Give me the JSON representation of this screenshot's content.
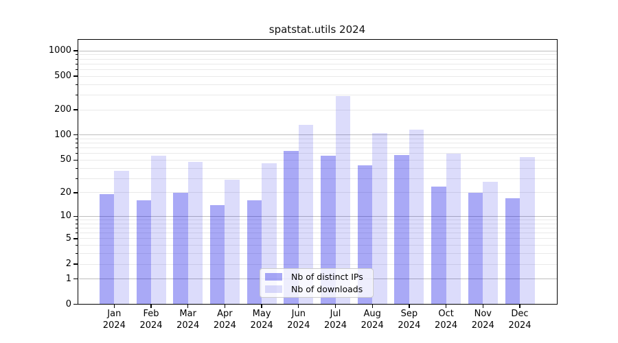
{
  "title": "spatstat.utils 2024",
  "chart_data": {
    "type": "bar",
    "title": "spatstat.utils 2024",
    "x_categories": [
      {
        "month": "Jan",
        "year": "2024"
      },
      {
        "month": "Feb",
        "year": "2024"
      },
      {
        "month": "Mar",
        "year": "2024"
      },
      {
        "month": "Apr",
        "year": "2024"
      },
      {
        "month": "May",
        "year": "2024"
      },
      {
        "month": "Jun",
        "year": "2024"
      },
      {
        "month": "Jul",
        "year": "2024"
      },
      {
        "month": "Aug",
        "year": "2024"
      },
      {
        "month": "Sep",
        "year": "2024"
      },
      {
        "month": "Oct",
        "year": "2024"
      },
      {
        "month": "Nov",
        "year": "2024"
      },
      {
        "month": "Dec",
        "year": "2024"
      }
    ],
    "series": [
      {
        "name": "Nb of distinct IPs",
        "color": "rgba(10,10,230,0.35)",
        "values": [
          19,
          16,
          20,
          14,
          16,
          64,
          56,
          43,
          58,
          24,
          20,
          17
        ]
      },
      {
        "name": "Nb of downloads",
        "color": "rgba(10,10,230,0.14)",
        "values": [
          37,
          57,
          48,
          29,
          46,
          133,
          290,
          106,
          115,
          60,
          27,
          54
        ]
      }
    ],
    "y_axis": {
      "scale": "log1p",
      "tick_values": [
        1000,
        500,
        200,
        100,
        50,
        20,
        10,
        5,
        2,
        1,
        0
      ],
      "tick_labels": [
        "1000",
        "500",
        "200",
        "100",
        "50",
        "20",
        "10",
        "5",
        "2",
        "1",
        "0"
      ],
      "major_grid_values": [
        1,
        10,
        100,
        1000
      ],
      "minor_grid_values": [
        2,
        3,
        4,
        5,
        6,
        7,
        8,
        9,
        20,
        30,
        40,
        50,
        60,
        70,
        80,
        90,
        200,
        300,
        400,
        500,
        600,
        700,
        800,
        900
      ],
      "ylim": [
        0,
        1350
      ]
    },
    "legend_position": "inside lower center",
    "grid": true
  },
  "colors": {
    "major_grid": "#bdbdbd",
    "minor_grid": "#e9e9e9",
    "axis": "#000000",
    "background": "#ffffff"
  }
}
